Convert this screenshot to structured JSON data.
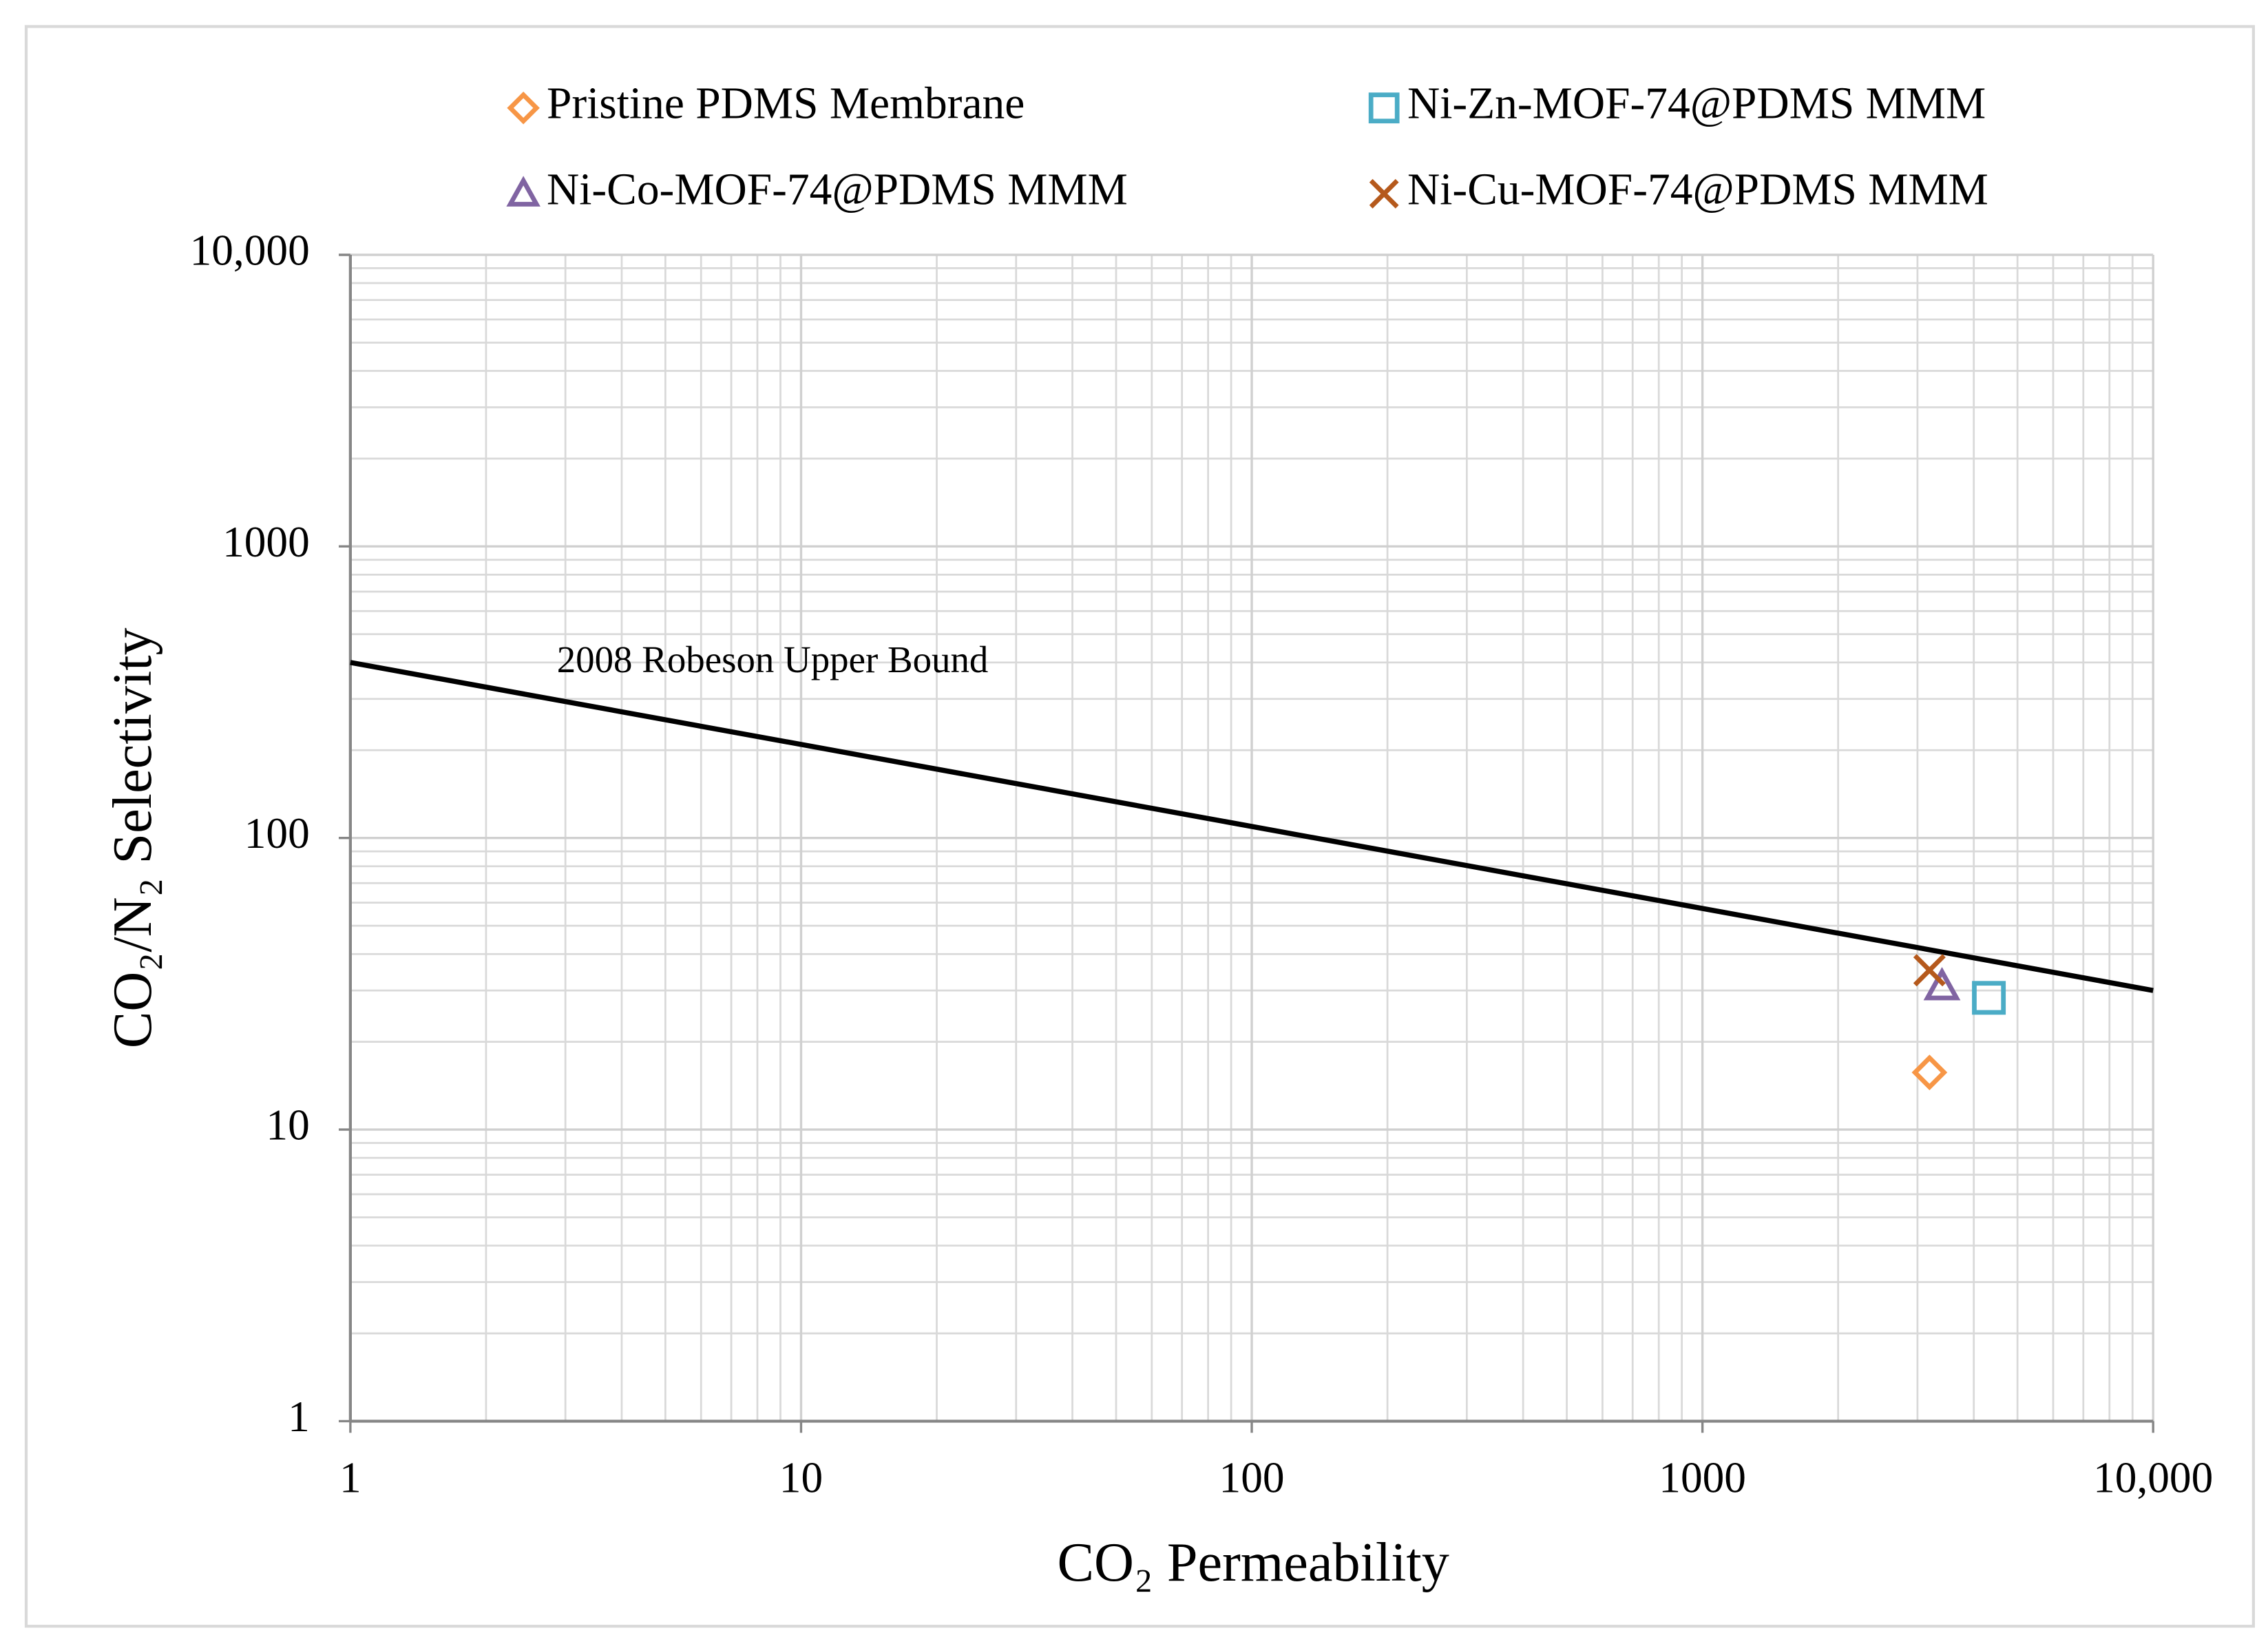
{
  "chart_data": {
    "type": "scatter",
    "xlabel": "CO₂ Permeability",
    "ylabel": "CO₂/N₂ Selectivity",
    "log_x": true,
    "log_y": true,
    "grid": true,
    "minor_grid": true,
    "legend": "top",
    "xlim": [
      1,
      10000
    ],
    "ylim": [
      1,
      10000
    ],
    "xticks": [
      1,
      10,
      100,
      1000,
      {
        "value": 10000,
        "label": "10,000"
      }
    ],
    "yticks": [
      1,
      10,
      100,
      1000,
      {
        "value": 10000,
        "label": "10,000"
      }
    ],
    "series": [
      {
        "name": "Pristine PDMS Membrane",
        "color": "#f79646",
        "marker": "diamond",
        "x": [
          3190
        ],
        "values": [
          15.7
        ]
      },
      {
        "name": "Ni-Zn-MOF-74@PDMS MMM",
        "color": "#4bacc6",
        "marker": "square",
        "x": [
          4320
        ],
        "values": [
          28.3
        ]
      },
      {
        "name": "Ni-Co-MOF-74@PDMS MMM",
        "color": "#8064a2",
        "marker": "triangle",
        "x": [
          3400
        ],
        "values": [
          31
        ]
      },
      {
        "name": "Ni-Cu-MOF-74@PDMS MMM",
        "color": "#b5591c",
        "marker": "x",
        "x": [
          3190
        ],
        "values": [
          35.2
        ]
      }
    ],
    "upper_bound": {
      "label": "2008 Robeson Upper Bound",
      "color": "#000000",
      "x": [
        1,
        10000
      ],
      "values": [
        400,
        30
      ]
    }
  }
}
